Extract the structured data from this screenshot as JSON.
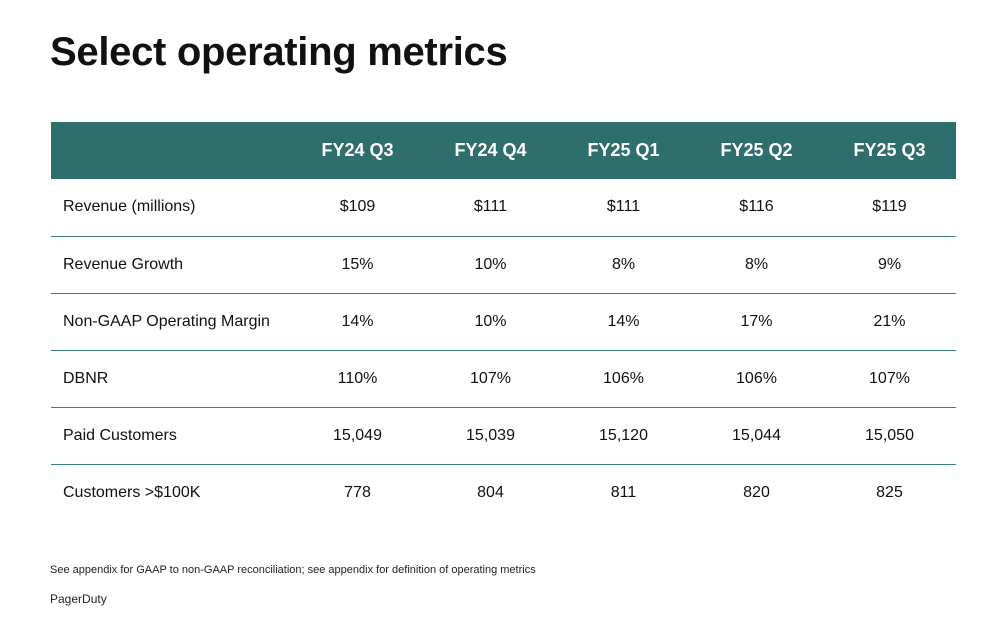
{
  "title": "Select operating metrics",
  "table": {
    "columns": [
      "FY24 Q3",
      "FY24 Q4",
      "FY25 Q1",
      "FY25 Q2",
      "FY25 Q3"
    ],
    "rows": [
      {
        "label": "Revenue (millions)",
        "values": [
          "$109",
          "$111",
          "$111",
          "$116",
          "$119"
        ]
      },
      {
        "label": "Revenue Growth",
        "values": [
          "15%",
          "10%",
          "8%",
          "8%",
          "9%"
        ]
      },
      {
        "label": "Non-GAAP Operating Margin",
        "values": [
          "14%",
          "10%",
          "14%",
          "17%",
          "21%"
        ]
      },
      {
        "label": "DBNR",
        "values": [
          "110%",
          "107%",
          "106%",
          "106%",
          "107%"
        ]
      },
      {
        "label": "Paid Customers",
        "values": [
          "15,049",
          "15,039",
          "15,120",
          "15,044",
          "15,050"
        ]
      },
      {
        "label": "Customers >$100K",
        "values": [
          "778",
          "804",
          "811",
          "820",
          "825"
        ]
      }
    ]
  },
  "footnote": "See appendix for GAAP to non-GAAP reconciliation; see appendix for definition of operating metrics",
  "brand": "PagerDuty",
  "colors": {
    "header_background": "#2e6e6c",
    "header_text": "#ffffff",
    "row_divider": "#3d7c80"
  }
}
